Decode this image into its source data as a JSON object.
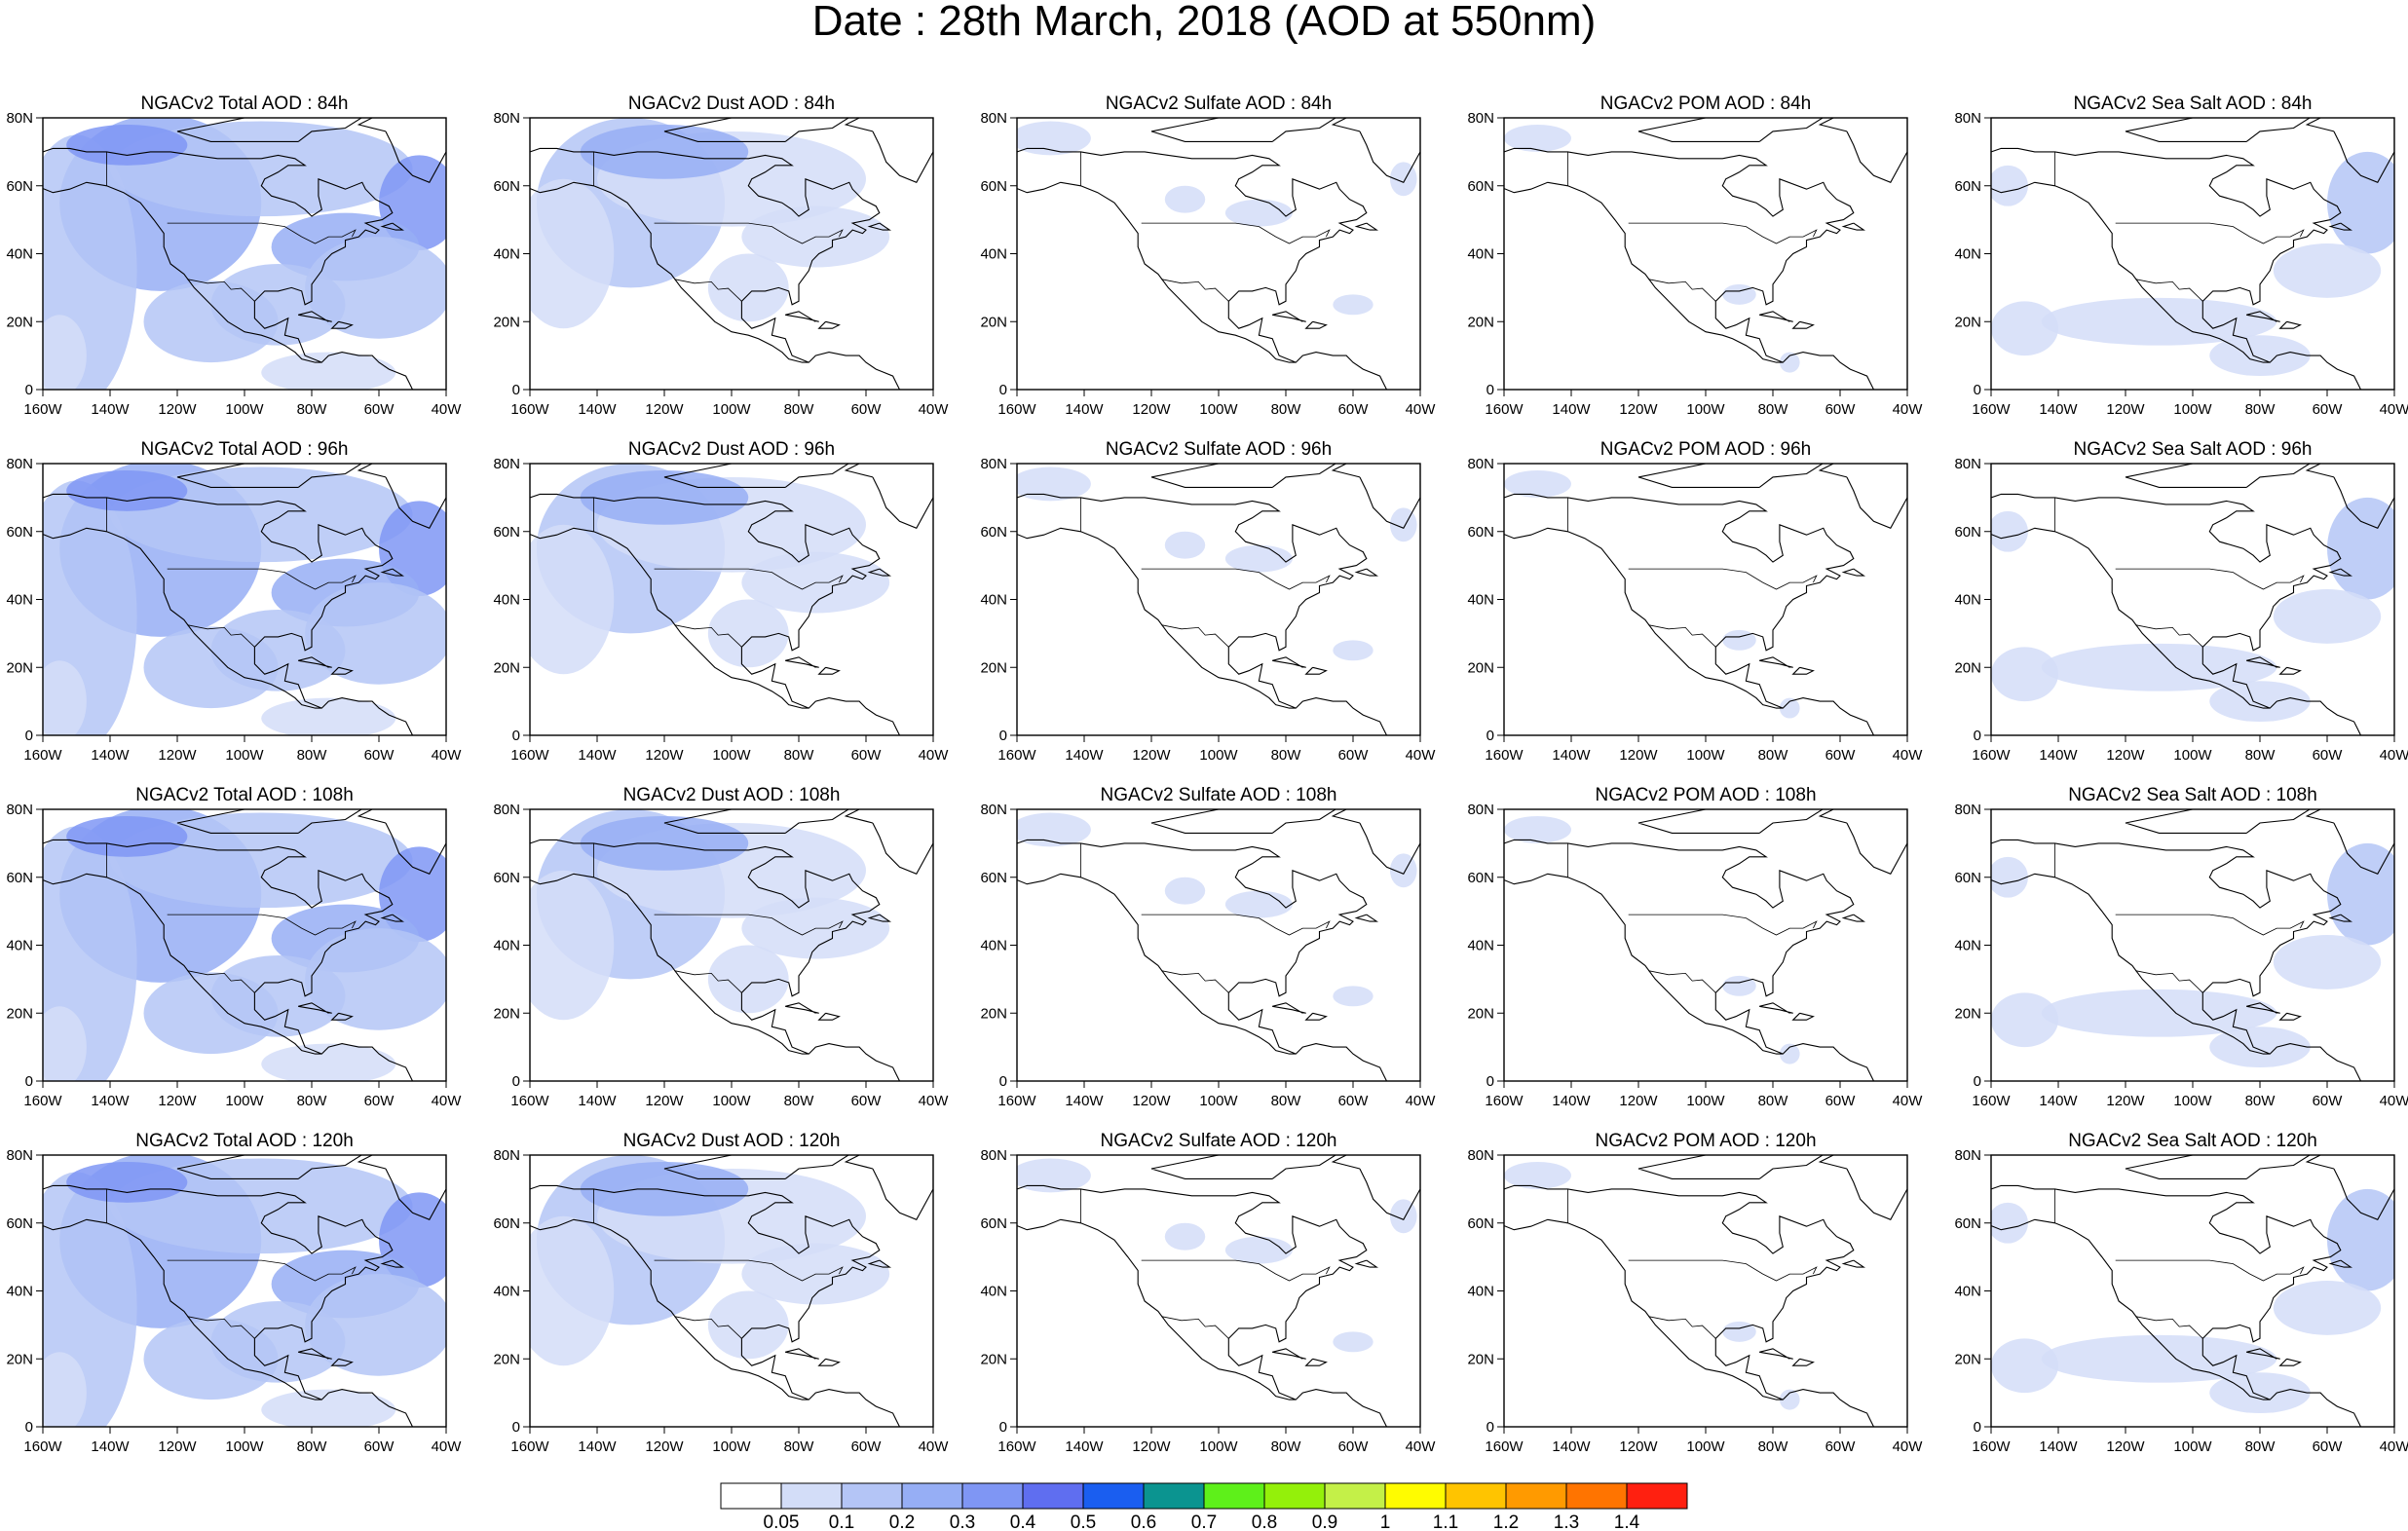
{
  "title": "Date : 28th March, 2018 (AOD at 550nm)",
  "panels": [
    [
      {
        "title": "NGACv2 Total AOD : 84h",
        "field": "total"
      },
      {
        "title": "NGACv2 Dust AOD : 84h",
        "field": "dust"
      },
      {
        "title": "NGACv2 Sulfate AOD : 84h",
        "field": "sulfate"
      },
      {
        "title": "NGACv2 POM AOD : 84h",
        "field": "pom"
      },
      {
        "title": "NGACv2 Sea Salt AOD : 84h",
        "field": "seasalt"
      }
    ],
    [
      {
        "title": "NGACv2 Total AOD : 96h",
        "field": "total"
      },
      {
        "title": "NGACv2 Dust AOD : 96h",
        "field": "dust"
      },
      {
        "title": "NGACv2 Sulfate AOD : 96h",
        "field": "sulfate"
      },
      {
        "title": "NGACv2 POM AOD : 96h",
        "field": "pom"
      },
      {
        "title": "NGACv2 Sea Salt AOD : 96h",
        "field": "seasalt"
      }
    ],
    [
      {
        "title": "NGACv2 Total AOD : 108h",
        "field": "total"
      },
      {
        "title": "NGACv2 Dust AOD : 108h",
        "field": "dust"
      },
      {
        "title": "NGACv2 Sulfate AOD : 108h",
        "field": "sulfate"
      },
      {
        "title": "NGACv2 POM AOD : 108h",
        "field": "pom"
      },
      {
        "title": "NGACv2 Sea Salt AOD : 108h",
        "field": "seasalt"
      }
    ],
    [
      {
        "title": "NGACv2 Total AOD : 120h",
        "field": "total"
      },
      {
        "title": "NGACv2 Dust AOD : 120h",
        "field": "dust"
      },
      {
        "title": "NGACv2 Sulfate AOD : 120h",
        "field": "sulfate"
      },
      {
        "title": "NGACv2 POM AOD : 120h",
        "field": "pom"
      },
      {
        "title": "NGACv2 Sea Salt  AOD : 120h",
        "field": "seasalt"
      }
    ]
  ],
  "lon_ticks": [
    "160W",
    "140W",
    "120W",
    "100W",
    "80W",
    "60W",
    "40W"
  ],
  "lat_ticks": [
    "0",
    "20N",
    "40N",
    "60N",
    "80N"
  ],
  "colorbar": {
    "colors": [
      "#ffffff",
      "#d3ddf8",
      "#b4c5f6",
      "#96aef5",
      "#7f96f4",
      "#5f6ef0",
      "#1a5ef0",
      "#0b9490",
      "#5ef01a",
      "#94f00a",
      "#c4f048",
      "#fffc00",
      "#ffc400",
      "#ff9a00",
      "#ff7400",
      "#ff2010"
    ],
    "labels": [
      "0.05",
      "0.1",
      "0.2",
      "0.3",
      "0.4",
      "0.5",
      "0.6",
      "0.7",
      "0.8",
      "0.9",
      "1",
      "1.1",
      "1.2",
      "1.3",
      "1.4"
    ]
  }
}
